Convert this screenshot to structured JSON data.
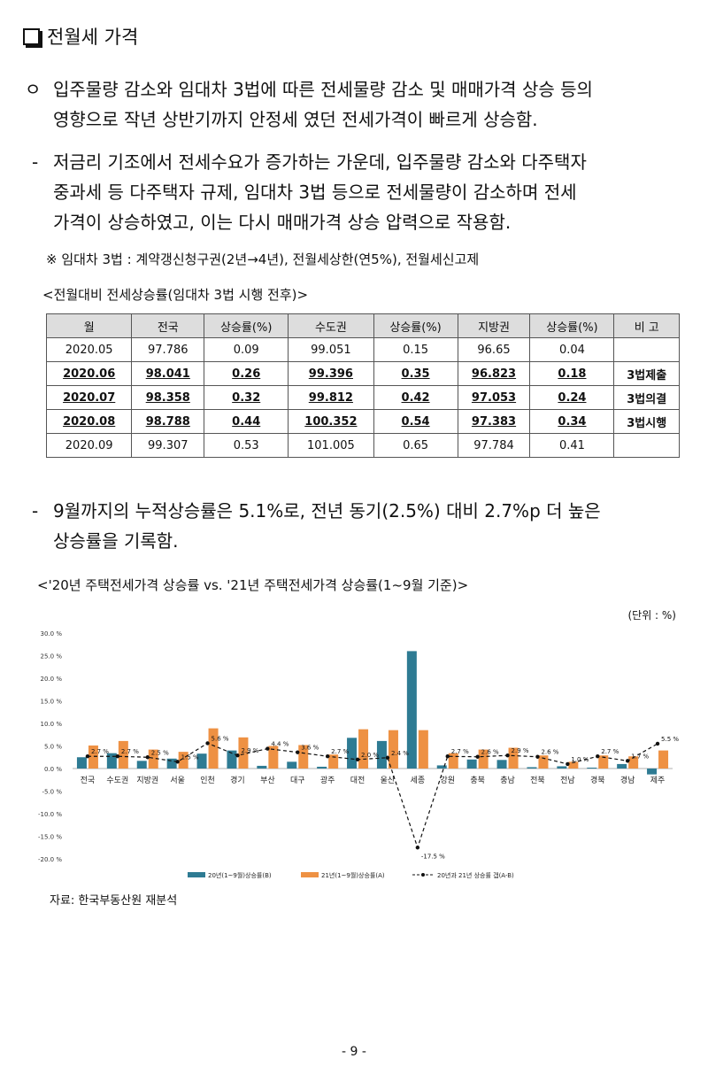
{
  "section": {
    "title": "전월세 가격"
  },
  "bullet1": {
    "marker": "ㅇ",
    "lines": [
      "입주물량 감소와 임대차 3법에 따른 전세물량 감소 및 매매가격 상승 등의",
      "영향으로 작년 상반기까지 안정세 였던 전세가격이 빠르게 상승함."
    ]
  },
  "bullet2": {
    "marker": "-",
    "lines": [
      "저금리 기조에서 전세수요가 증가하는 가운데, 입주물량 감소와 다주택자",
      "중과세 등 다주택자 규제, 임대차 3법 등으로 전세물량이 감소하며 전세",
      "가격이 상승하였고, 이는 다시 매매가격 상승 압력으로 작용함."
    ]
  },
  "note": "※ 임대차 3법 : 계약갱신청구권(2년→4년), 전월세상한(연5%), 전월세신고제",
  "table_caption": "<전월대비 전세상승률(임대차 3법 시행 전후)>",
  "table": {
    "headers": [
      "월",
      "전국",
      "상승률(%)",
      "수도권",
      "상승률(%)",
      "지방권",
      "상승률(%)",
      "비  고"
    ],
    "rows": [
      [
        "2020.05",
        "97.786",
        "0.09",
        "99.051",
        "0.15",
        "96.65",
        "0.04",
        ""
      ],
      [
        "2020.06",
        "98.041",
        "0.26",
        "99.396",
        "0.35",
        "96.823",
        "0.18",
        "3법제출"
      ],
      [
        "2020.07",
        "98.358",
        "0.32",
        "99.812",
        "0.42",
        "97.053",
        "0.24",
        "3법의결"
      ],
      [
        "2020.08",
        "98.788",
        "0.44",
        "100.352",
        "0.54",
        "97.383",
        "0.34",
        "3법시행"
      ],
      [
        "2020.09",
        "99.307",
        "0.53",
        "101.005",
        "0.65",
        "97.784",
        "0.41",
        ""
      ]
    ]
  },
  "bullet3": {
    "marker": "-",
    "lines": [
      "9월까지의 누적상승률은 5.1%로, 전년 동기(2.5%) 대비 2.7%p 더 높은",
      "상승률을 기록함."
    ]
  },
  "chart_caption": "<'20년 주택전세가격 상승률 vs. '21년 주택전세가격 상승률(1~9월 기준)>",
  "units_label": "(단위 : %)",
  "source": "자료: 한국부동산원 재분석",
  "page_number": "- 9 -",
  "colors": {
    "series_2020": "#2e7b93",
    "series_2021": "#ee9143",
    "diff_line": "#111111"
  },
  "chart_data": {
    "type": "bar",
    "categories": [
      "전국",
      "수도권",
      "지방권",
      "서울",
      "인천",
      "경기",
      "부산",
      "대구",
      "광주",
      "대전",
      "울산",
      "세종",
      "강원",
      "충북",
      "충남",
      "전북",
      "전남",
      "경북",
      "경남",
      "제주"
    ],
    "series": [
      {
        "name": "20년(1~9월)상승률(B)",
        "type": "bar",
        "values": [
          2.5,
          3.4,
          1.7,
          2.2,
          3.3,
          4.0,
          0.6,
          1.5,
          0.4,
          6.8,
          6.1,
          26.0,
          0.7,
          2.0,
          1.9,
          0.3,
          0.5,
          0.2,
          1.0,
          -1.3
        ]
      },
      {
        "name": "21년(1~9월)상승률(A)",
        "type": "bar",
        "values": [
          5.1,
          6.1,
          4.2,
          3.7,
          8.9,
          6.9,
          5.0,
          5.2,
          3.1,
          8.7,
          8.5,
          8.5,
          3.4,
          4.2,
          4.6,
          2.9,
          1.5,
          2.9,
          2.7,
          4.0
        ]
      },
      {
        "name": "20년과 21년 상승률 갭(A-B)",
        "type": "line",
        "values": [
          2.7,
          2.7,
          2.5,
          1.5,
          5.6,
          2.9,
          4.4,
          3.6,
          2.7,
          2.0,
          2.4,
          -17.5,
          2.7,
          2.6,
          2.9,
          2.6,
          1.0,
          2.7,
          1.7,
          5.5
        ]
      }
    ],
    "gap_labels": [
      "2.7 %",
      "2.7 %",
      "2.5 %",
      "1.5 %",
      "5.6 %",
      "2.9 %",
      "4.4 %",
      "3.6 %",
      "2.7 %",
      "2.0 %",
      "2.4 %",
      "-17.5 %",
      "2.7 %",
      "2.6 %",
      "2.9 %",
      "2.6 %",
      "1.0 %",
      "2.7 %",
      "1.7 %",
      "5.5 %"
    ],
    "y_ticks": [
      "30.0 %",
      "25.0 %",
      "20.0 %",
      "15.0 %",
      "10.0 %",
      "5.0 %",
      "0.0 %",
      "-5.0 %",
      "-10.0 %",
      "-15.0 %",
      "-20.0 %"
    ],
    "ylim": [
      -20,
      30
    ],
    "legend_position": "bottom",
    "grid": false
  }
}
